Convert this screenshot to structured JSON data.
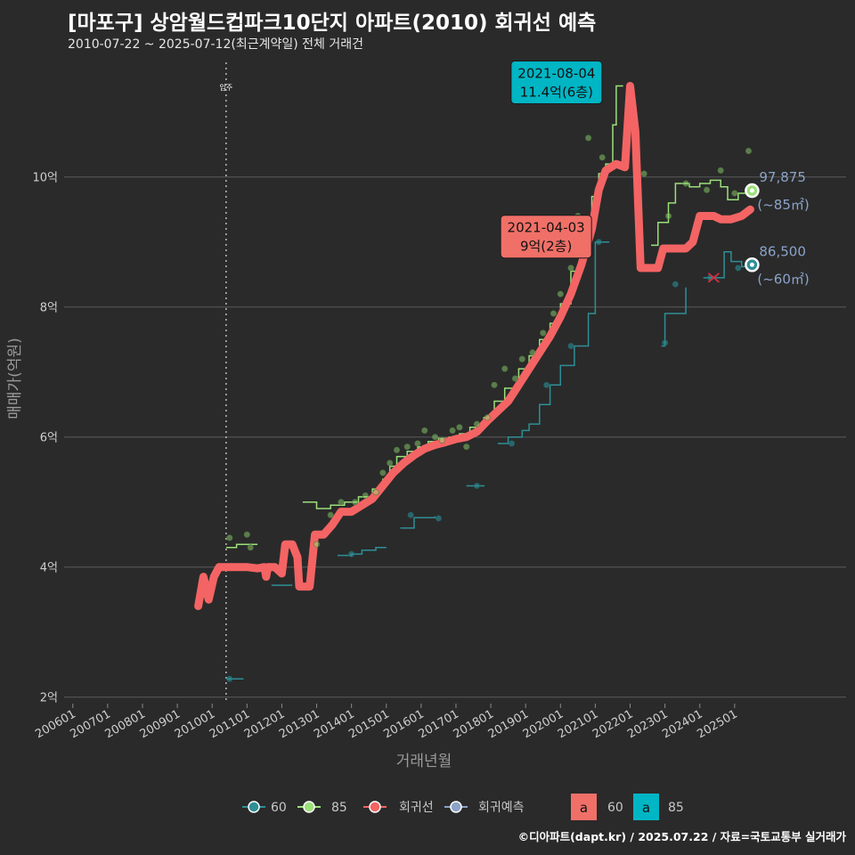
{
  "title": "[마포구] 상암월드컵파크10단지 아파트(2010) 회귀선 예측",
  "subtitle": "2010-07-22 ~ 2025-07-12(최근계약일) 전체 거래건",
  "credit": "©디아파트(dapt.kr) / 2025.07.22 / 자료=국토교통부 실거래가",
  "colors": {
    "background": "#2a2a2a",
    "grid": "#5a5a5a",
    "s60": "#2e8f96",
    "s85": "#9be07a",
    "regression": "#f46464",
    "forecast": "#8ba3c9",
    "label60": "#00b5c4",
    "label85": "#f07068"
  },
  "chart_data": {
    "type": "line",
    "xlabel": "거래년월",
    "ylabel": "매매가(억원)",
    "xlim": [
      2005.75,
      2028.2
    ],
    "ylim": [
      1.9,
      11.9
    ],
    "x_ticks": [
      {
        "v": 2006.0,
        "label": "200601"
      },
      {
        "v": 2007.0,
        "label": "200701"
      },
      {
        "v": 2008.0,
        "label": "200801"
      },
      {
        "v": 2009.0,
        "label": "200901"
      },
      {
        "v": 2010.0,
        "label": "201001"
      },
      {
        "v": 2011.0,
        "label": "201101"
      },
      {
        "v": 2012.0,
        "label": "201201"
      },
      {
        "v": 2013.0,
        "label": "201301"
      },
      {
        "v": 2014.0,
        "label": "201401"
      },
      {
        "v": 2015.0,
        "label": "201501"
      },
      {
        "v": 2016.0,
        "label": "201601"
      },
      {
        "v": 2017.0,
        "label": "201701"
      },
      {
        "v": 2018.0,
        "label": "201801"
      },
      {
        "v": 2019.0,
        "label": "201901"
      },
      {
        "v": 2020.0,
        "label": "202001"
      },
      {
        "v": 2021.0,
        "label": "202101"
      },
      {
        "v": 2022.0,
        "label": "202201"
      },
      {
        "v": 2023.0,
        "label": "202301"
      },
      {
        "v": 2024.0,
        "label": "202401"
      },
      {
        "v": 2025.0,
        "label": "202501"
      }
    ],
    "y_ticks": [
      {
        "v": 2,
        "label": "2억"
      },
      {
        "v": 4,
        "label": "4억"
      },
      {
        "v": 6,
        "label": "6억"
      },
      {
        "v": 8,
        "label": "8억"
      },
      {
        "v": 10,
        "label": "10억"
      }
    ],
    "move_in": {
      "x": 2010.4,
      "label": "입주"
    },
    "series": [
      {
        "name": "60",
        "key": "s60",
        "step": true,
        "points": [
          [
            2010.4,
            2.28
          ],
          [
            2010.9,
            2.28
          ],
          null,
          [
            2011.7,
            3.72
          ],
          [
            2012.3,
            3.72
          ],
          null,
          [
            2013.6,
            4.18
          ],
          [
            2014.0,
            4.2
          ],
          [
            2014.3,
            4.26
          ],
          [
            2014.7,
            4.3
          ],
          [
            2015.0,
            4.3
          ],
          null,
          [
            2015.4,
            4.6
          ],
          [
            2015.8,
            4.76
          ],
          [
            2016.4,
            4.78
          ],
          null,
          [
            2017.3,
            5.25
          ],
          [
            2017.8,
            5.26
          ],
          null,
          [
            2018.2,
            5.9
          ],
          [
            2018.5,
            6.0
          ],
          [
            2018.9,
            6.1
          ],
          [
            2019.1,
            6.2
          ],
          [
            2019.4,
            6.5
          ],
          [
            2019.7,
            6.8
          ],
          [
            2020.0,
            7.1
          ],
          [
            2020.4,
            7.4
          ],
          [
            2020.8,
            7.9
          ],
          [
            2021.0,
            9.0
          ],
          [
            2021.4,
            9.0
          ],
          null,
          [
            2022.9,
            7.4
          ],
          [
            2023.0,
            7.9
          ],
          [
            2023.5,
            7.9
          ],
          [
            2023.6,
            8.3
          ],
          null,
          [
            2024.1,
            8.45
          ],
          [
            2024.4,
            8.45
          ],
          [
            2024.7,
            8.85
          ],
          [
            2024.9,
            8.7
          ],
          [
            2025.2,
            8.62
          ],
          [
            2025.4,
            8.65
          ]
        ]
      },
      {
        "name": "85",
        "key": "s85",
        "step": true,
        "points": [
          [
            2010.4,
            4.3
          ],
          [
            2010.7,
            4.35
          ],
          [
            2011.3,
            4.35
          ],
          null,
          [
            2012.6,
            5.0
          ],
          [
            2013.0,
            4.9
          ],
          [
            2013.4,
            4.95
          ],
          [
            2013.8,
            5.0
          ],
          [
            2014.2,
            5.08
          ],
          [
            2014.6,
            5.2
          ],
          [
            2014.9,
            5.35
          ],
          [
            2015.1,
            5.55
          ],
          [
            2015.3,
            5.7
          ],
          [
            2015.6,
            5.78
          ],
          [
            2015.9,
            5.85
          ],
          [
            2016.2,
            5.93
          ],
          [
            2016.5,
            5.98
          ],
          [
            2016.8,
            6.0
          ],
          [
            2017.1,
            6.05
          ],
          [
            2017.4,
            6.15
          ],
          [
            2017.8,
            6.3
          ],
          [
            2018.1,
            6.55
          ],
          [
            2018.4,
            6.75
          ],
          [
            2018.8,
            7.05
          ],
          [
            2019.1,
            7.25
          ],
          [
            2019.4,
            7.5
          ],
          [
            2019.7,
            7.75
          ],
          [
            2020.0,
            8.05
          ],
          [
            2020.3,
            8.55
          ],
          [
            2020.6,
            9.1
          ],
          [
            2020.9,
            9.7
          ],
          [
            2021.1,
            10.05
          ],
          [
            2021.3,
            10.2
          ],
          [
            2021.5,
            10.8
          ],
          [
            2021.6,
            11.4
          ],
          [
            2021.8,
            11.4
          ],
          null,
          [
            2022.6,
            8.95
          ],
          [
            2022.8,
            9.3
          ],
          [
            2023.1,
            9.6
          ],
          [
            2023.3,
            9.9
          ],
          [
            2023.7,
            9.85
          ],
          [
            2024.0,
            9.9
          ],
          [
            2024.3,
            9.95
          ],
          [
            2024.6,
            9.85
          ],
          [
            2024.8,
            9.65
          ],
          [
            2025.1,
            9.75
          ],
          [
            2025.4,
            9.79
          ]
        ]
      },
      {
        "name": "회귀선",
        "key": "regression",
        "step": false,
        "thick": true,
        "points": [
          [
            2009.6,
            3.4
          ],
          [
            2009.75,
            3.85
          ],
          [
            2009.9,
            3.5
          ],
          [
            2010.05,
            3.85
          ],
          [
            2010.2,
            4.0
          ],
          [
            2010.6,
            4.0
          ],
          [
            2011.0,
            4.0
          ],
          [
            2011.3,
            3.98
          ],
          [
            2011.5,
            4.0
          ],
          [
            2011.55,
            3.85
          ],
          [
            2011.6,
            4.0
          ],
          [
            2011.8,
            4.0
          ],
          [
            2012.0,
            3.9
          ],
          [
            2012.1,
            4.35
          ],
          [
            2012.3,
            4.35
          ],
          [
            2012.45,
            4.15
          ],
          [
            2012.5,
            3.7
          ],
          [
            2012.8,
            3.7
          ],
          [
            2012.95,
            4.5
          ],
          [
            2013.2,
            4.5
          ],
          [
            2013.45,
            4.65
          ],
          [
            2013.7,
            4.85
          ],
          [
            2014.0,
            4.85
          ],
          [
            2014.3,
            4.95
          ],
          [
            2014.6,
            5.05
          ],
          [
            2014.9,
            5.25
          ],
          [
            2015.2,
            5.45
          ],
          [
            2015.5,
            5.6
          ],
          [
            2015.8,
            5.72
          ],
          [
            2016.1,
            5.82
          ],
          [
            2016.4,
            5.88
          ],
          [
            2016.7,
            5.92
          ],
          [
            2017.0,
            5.97
          ],
          [
            2017.3,
            6.0
          ],
          [
            2017.6,
            6.08
          ],
          [
            2017.9,
            6.25
          ],
          [
            2018.2,
            6.4
          ],
          [
            2018.5,
            6.55
          ],
          [
            2018.8,
            6.8
          ],
          [
            2019.1,
            7.05
          ],
          [
            2019.4,
            7.3
          ],
          [
            2019.7,
            7.55
          ],
          [
            2020.0,
            7.85
          ],
          [
            2020.3,
            8.2
          ],
          [
            2020.6,
            8.65
          ],
          [
            2020.9,
            9.2
          ],
          [
            2021.1,
            9.8
          ],
          [
            2021.3,
            10.1
          ],
          [
            2021.6,
            10.2
          ],
          [
            2021.85,
            10.15
          ],
          [
            2022.0,
            11.4
          ],
          [
            2022.15,
            10.7
          ],
          [
            2022.3,
            8.6
          ],
          [
            2022.5,
            8.6
          ],
          [
            2022.8,
            8.6
          ],
          [
            2022.95,
            8.9
          ],
          [
            2023.3,
            8.9
          ],
          [
            2023.6,
            8.9
          ],
          [
            2023.8,
            9.0
          ],
          [
            2024.0,
            9.4
          ],
          [
            2024.4,
            9.4
          ],
          [
            2024.6,
            9.35
          ],
          [
            2024.9,
            9.35
          ],
          [
            2025.2,
            9.4
          ],
          [
            2025.45,
            9.5
          ]
        ]
      }
    ],
    "scatter85": [
      [
        2010.5,
        4.45
      ],
      [
        2011.0,
        4.5
      ],
      [
        2011.1,
        4.3
      ],
      [
        2013.0,
        4.35
      ],
      [
        2013.4,
        4.8
      ],
      [
        2013.7,
        5.0
      ],
      [
        2014.1,
        5.0
      ],
      [
        2014.4,
        5.1
      ],
      [
        2014.7,
        5.15
      ],
      [
        2014.9,
        5.45
      ],
      [
        2015.1,
        5.6
      ],
      [
        2015.3,
        5.8
      ],
      [
        2015.6,
        5.85
      ],
      [
        2015.9,
        5.9
      ],
      [
        2016.1,
        6.1
      ],
      [
        2016.4,
        6.0
      ],
      [
        2016.6,
        5.95
      ],
      [
        2016.9,
        6.1
      ],
      [
        2017.1,
        6.15
      ],
      [
        2017.3,
        5.85
      ],
      [
        2017.6,
        6.2
      ],
      [
        2017.9,
        6.3
      ],
      [
        2018.1,
        6.8
      ],
      [
        2018.4,
        7.05
      ],
      [
        2018.7,
        6.9
      ],
      [
        2018.9,
        7.2
      ],
      [
        2019.2,
        7.3
      ],
      [
        2019.5,
        7.6
      ],
      [
        2019.8,
        7.9
      ],
      [
        2020.0,
        8.2
      ],
      [
        2020.3,
        8.6
      ],
      [
        2020.5,
        9.4
      ],
      [
        2020.8,
        10.6
      ],
      [
        2021.2,
        10.3
      ],
      [
        2022.4,
        10.05
      ],
      [
        2023.1,
        9.4
      ],
      [
        2023.6,
        9.9
      ],
      [
        2024.2,
        9.8
      ],
      [
        2024.6,
        10.1
      ],
      [
        2025.0,
        9.75
      ],
      [
        2025.4,
        10.4
      ]
    ],
    "scatter60": [
      [
        2010.5,
        2.28
      ],
      [
        2014.0,
        4.2
      ],
      [
        2015.7,
        4.8
      ],
      [
        2016.5,
        4.75
      ],
      [
        2017.6,
        5.25
      ],
      [
        2018.6,
        5.9
      ],
      [
        2019.6,
        6.8
      ],
      [
        2020.3,
        7.4
      ],
      [
        2021.1,
        9.0
      ],
      [
        2023.0,
        7.45
      ],
      [
        2023.3,
        8.35
      ],
      [
        2024.3,
        8.45
      ],
      [
        2025.1,
        8.6
      ]
    ],
    "red_x": {
      "x": 2024.4,
      "y": 8.45
    },
    "end_labels": [
      {
        "key": "s85",
        "x": 2025.5,
        "y": 9.79,
        "value": "97,875",
        "area": "(~85㎡)"
      },
      {
        "key": "s60",
        "x": 2025.5,
        "y": 8.65,
        "value": "86,500",
        "area": "(~60㎡)"
      }
    ],
    "annotations": [
      {
        "date": "2021-08-04",
        "text": "11.4억(6층)",
        "color": "label60",
        "x": 2021.6,
        "y": 11.4
      },
      {
        "date": "2021-04-03",
        "text": "9억(2층)",
        "color": "label85",
        "x": 2021.3,
        "y": 9.0
      }
    ],
    "legend": [
      {
        "name": "60",
        "key": "s60",
        "kind": "line"
      },
      {
        "name": "85",
        "key": "s85",
        "kind": "line"
      },
      {
        "name": "회귀선",
        "key": "regression",
        "kind": "line"
      },
      {
        "name": "회귀예측",
        "key": "forecast",
        "kind": "line"
      },
      {
        "name": "60",
        "key": "label85",
        "kind": "box",
        "glyph": "a"
      },
      {
        "name": "85",
        "key": "label60",
        "kind": "box",
        "glyph": "a"
      }
    ]
  }
}
